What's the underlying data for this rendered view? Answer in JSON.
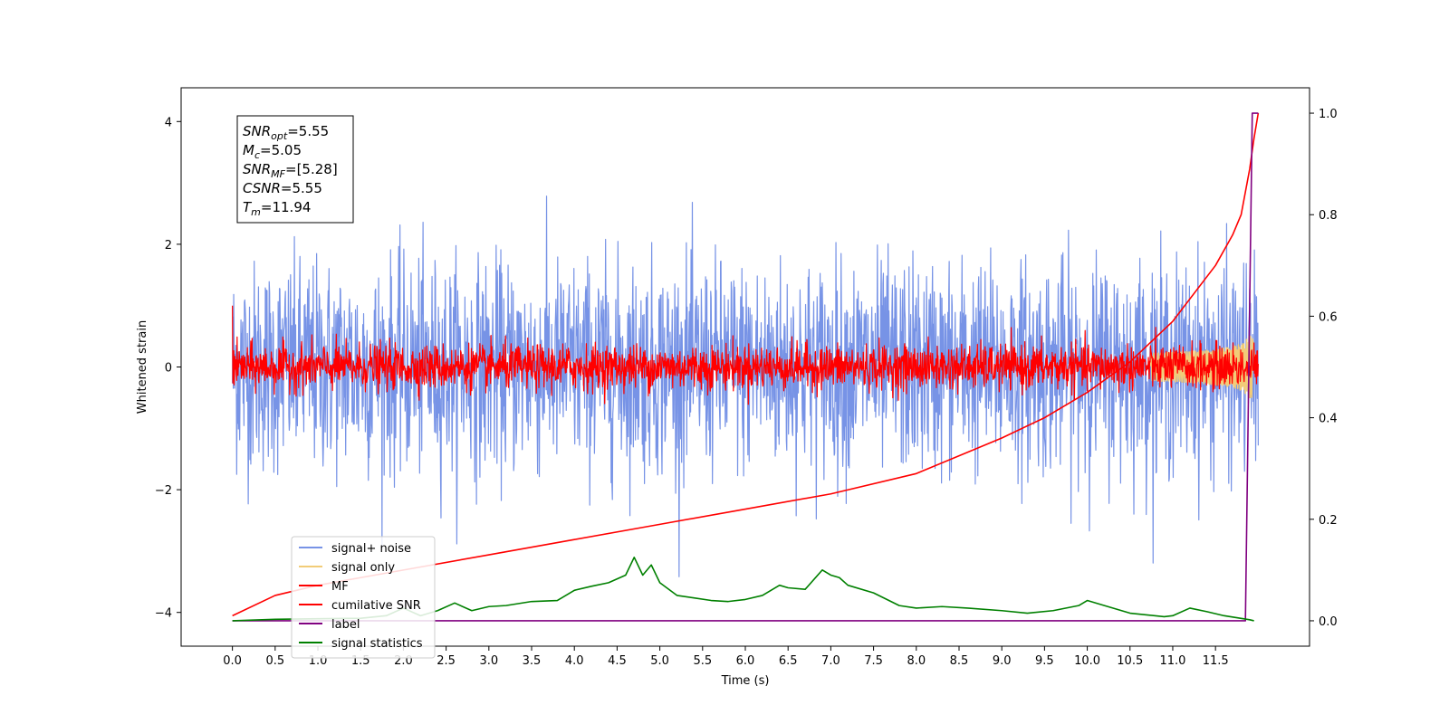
{
  "chart_data": {
    "type": "line",
    "xlabel": "Time (s)",
    "ylabel": "Whitened strain",
    "xlim": [
      -0.6,
      12.6
    ],
    "ylim": [
      -4.55,
      4.55
    ],
    "ylim_right": [
      -0.05,
      1.05
    ],
    "x_ticks": [
      "0.0",
      "0.5",
      "1.0",
      "1.5",
      "2.0",
      "2.5",
      "3.0",
      "3.5",
      "4.0",
      "4.5",
      "5.0",
      "5.5",
      "6.0",
      "6.5",
      "7.0",
      "7.5",
      "8.0",
      "8.5",
      "9.0",
      "9.5",
      "10.0",
      "10.5",
      "11.0",
      "11.5"
    ],
    "y_ticks_left": [
      "4",
      "2",
      "0",
      "−2",
      "−4"
    ],
    "y_ticks_right": [
      "1.0",
      "0.8",
      "0.6",
      "0.4",
      "0.2",
      "0.0"
    ],
    "annotation_lines": [
      {
        "base": "SNR",
        "sub": "opt",
        "value": "=5.55"
      },
      {
        "base": "M",
        "sub": "c",
        "value": "=5.05"
      },
      {
        "base": "SNR",
        "sub": "MF",
        "value": "=[5.28]"
      },
      {
        "base": "CSNR",
        "sub": "",
        "value": "=5.55"
      },
      {
        "base": "T",
        "sub": "m",
        "value": "=11.94"
      }
    ],
    "legend_position": "lower-left",
    "series": [
      {
        "name": "signal+ noise",
        "color": "#7793e6",
        "axis": "left",
        "kind": "noise",
        "duration": 12.0,
        "std": 0.85,
        "samples": 2400
      },
      {
        "name": "signal only",
        "color": "#f2cc78",
        "axis": "left",
        "kind": "chirp",
        "duration": 12.0,
        "tm": 11.94,
        "max_amp": 0.5
      },
      {
        "name": "MF",
        "color": "#ff0000",
        "axis": "left",
        "kind": "mf_noise",
        "duration": 12.0,
        "std": 0.18,
        "samples": 2400
      },
      {
        "name": "cumilative SNR",
        "color": "#ff0000",
        "axis": "right",
        "x": [
          0.0,
          0.5,
          1.0,
          2.0,
          3.0,
          4.0,
          5.0,
          6.0,
          7.0,
          8.0,
          9.0,
          9.5,
          10.0,
          10.5,
          11.0,
          11.5,
          11.7,
          11.8,
          11.9,
          11.95,
          12.0
        ],
        "y": [
          0.01,
          0.05,
          0.07,
          0.1,
          0.13,
          0.16,
          0.19,
          0.22,
          0.25,
          0.29,
          0.36,
          0.4,
          0.45,
          0.51,
          0.59,
          0.7,
          0.76,
          0.8,
          0.89,
          0.95,
          1.0
        ]
      },
      {
        "name": "label",
        "color": "#800080",
        "axis": "right",
        "x": [
          0.0,
          11.85,
          11.93,
          12.0
        ],
        "y": [
          0.0,
          0.0,
          1.0,
          1.0
        ]
      },
      {
        "name": "signal statistics",
        "color": "#008000",
        "axis": "right",
        "x": [
          0.0,
          0.5,
          1.0,
          1.5,
          1.8,
          2.0,
          2.2,
          2.4,
          2.6,
          2.8,
          3.0,
          3.2,
          3.5,
          3.8,
          4.0,
          4.2,
          4.4,
          4.6,
          4.7,
          4.8,
          4.9,
          5.0,
          5.2,
          5.4,
          5.6,
          5.8,
          6.0,
          6.2,
          6.4,
          6.5,
          6.7,
          6.9,
          7.0,
          7.1,
          7.2,
          7.5,
          7.8,
          8.0,
          8.3,
          8.6,
          9.0,
          9.3,
          9.6,
          9.9,
          10.0,
          10.2,
          10.5,
          10.9,
          11.0,
          11.2,
          11.4,
          11.6,
          11.9,
          11.95
        ],
        "y": [
          0.0,
          0.003,
          0.004,
          0.005,
          0.01,
          0.025,
          0.01,
          0.02,
          0.035,
          0.02,
          0.028,
          0.03,
          0.038,
          0.04,
          0.06,
          0.068,
          0.075,
          0.09,
          0.125,
          0.09,
          0.11,
          0.075,
          0.05,
          0.045,
          0.04,
          0.038,
          0.042,
          0.05,
          0.07,
          0.065,
          0.062,
          0.1,
          0.09,
          0.085,
          0.07,
          0.055,
          0.03,
          0.025,
          0.028,
          0.025,
          0.02,
          0.015,
          0.02,
          0.03,
          0.04,
          0.03,
          0.015,
          0.008,
          0.01,
          0.025,
          0.018,
          0.01,
          0.002,
          0.0
        ]
      }
    ]
  }
}
